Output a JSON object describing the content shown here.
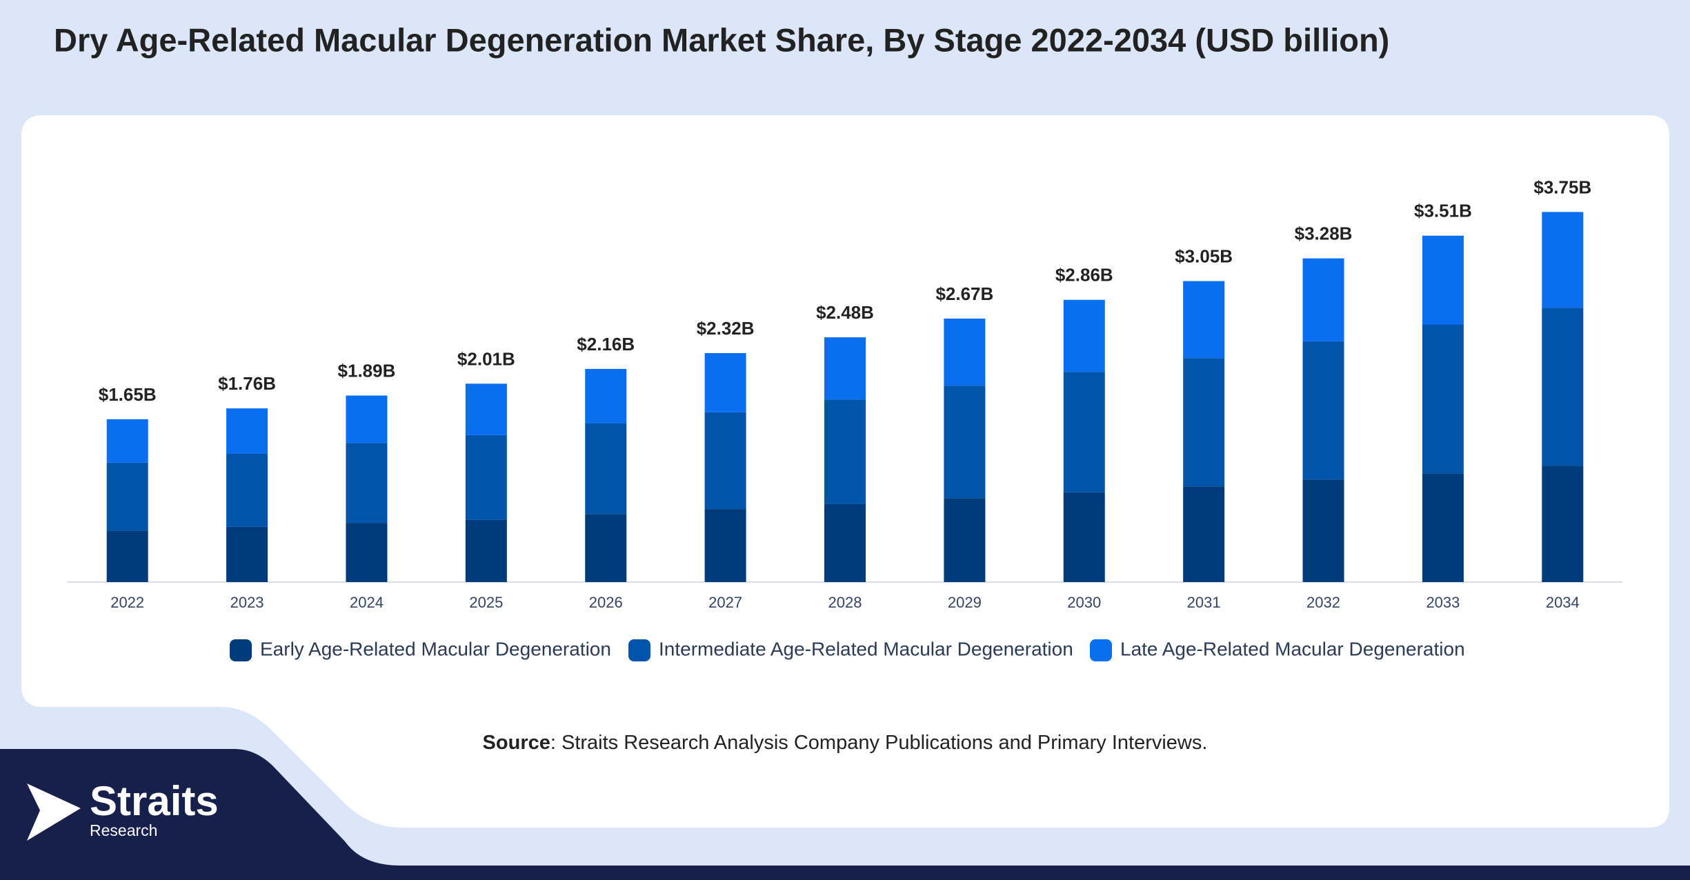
{
  "chart_data": {
    "type": "stacked-bar",
    "title": "Dry Age-Related Macular Degeneration Market Share, By Stage 2022-2034 (USD billion)",
    "categories": [
      "2022",
      "2023",
      "2024",
      "2025",
      "2026",
      "2027",
      "2028",
      "2029",
      "2030",
      "2031",
      "2032",
      "2033",
      "2034"
    ],
    "series": [
      {
        "name": "Early Age-Related Macular Degeneration",
        "color": "#003b7b",
        "values": [
          0.52,
          0.56,
          0.6,
          0.63,
          0.69,
          0.74,
          0.79,
          0.85,
          0.91,
          0.97,
          1.04,
          1.1,
          1.18
        ]
      },
      {
        "name": "Intermediate Age-Related Macular Degeneration",
        "color": "#0055aa",
        "values": [
          0.69,
          0.74,
          0.81,
          0.86,
          0.92,
          0.98,
          1.06,
          1.14,
          1.22,
          1.3,
          1.4,
          1.51,
          1.6
        ]
      },
      {
        "name": "Late Age-Related Macular Degeneration",
        "color": "#0a6ef0",
        "values": [
          0.44,
          0.46,
          0.48,
          0.52,
          0.55,
          0.6,
          0.63,
          0.68,
          0.73,
          0.78,
          0.84,
          0.9,
          0.97
        ]
      }
    ],
    "totals": {
      "values": [
        1.65,
        1.76,
        1.89,
        2.01,
        2.16,
        2.32,
        2.48,
        2.67,
        2.86,
        3.05,
        3.28,
        3.51,
        3.75
      ],
      "value_labels": [
        "$1.65B",
        "$1.76B",
        "$1.89B",
        "$2.01B",
        "$2.16B",
        "$2.32B",
        "$2.48B",
        "$2.67B",
        "$2.86B",
        "$3.05B",
        "$3.28B",
        "$3.51B",
        "$3.75B"
      ]
    },
    "ylim": [
      0,
      4.2
    ],
    "legend": "bottom"
  },
  "source": {
    "label": "Source",
    "text": ": Straits Research Analysis Company Publications and Primary Interviews."
  },
  "logo": {
    "name": "Straits",
    "tagline": "Research"
  }
}
